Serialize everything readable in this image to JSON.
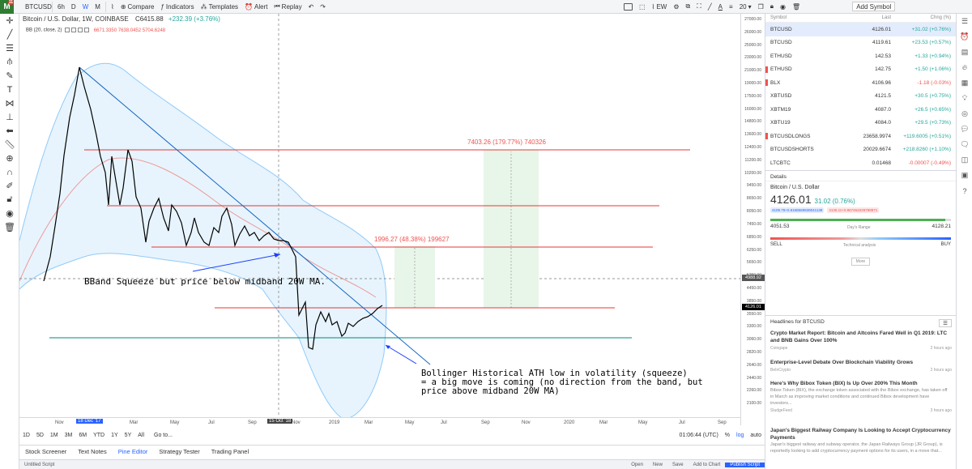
{
  "topbar": {
    "logo_badge": "11",
    "symbol": "BTCUSD",
    "intervals": [
      "6h",
      "D",
      "W",
      "M"
    ],
    "active_interval": "W",
    "compare": "Compare",
    "indicators": "Indicators",
    "templates": "Templates",
    "alert": "Alert",
    "replay": "Replay",
    "ew": "EW",
    "thickness": "20",
    "add_symbol": "Add Symbol"
  },
  "chart": {
    "title": "Bitcoin / U.S. Dollar, 1W, COINBASE",
    "price": "C6415.88",
    "change": "+232.39 (+3.76%)",
    "indicator": "BB (20, close, 2)",
    "bb_values": "6671.3350  7638.0452  5704.6248",
    "measure1": "1996.27 (48.38%) 199627",
    "measure2": "7403.26 (179.77%) 740326",
    "annotation1": "BBand Squeeze but price below midband 20W MA.",
    "annotation2_l1": "Bollinger Historical ATH low in volatility (squeeze)",
    "annotation2_l2": "= a big move is coming (no direction from the band, but",
    "annotation2_l3": "price above midband 20W MA)",
    "crosshair_price": "4988.92",
    "last_price_label": "4126.01"
  },
  "price_ticks": [
    "27000.00",
    "26000.00",
    "25000.00",
    "23000.00",
    "21000.00",
    "19000.00",
    "17500.00",
    "16000.00",
    "14800.00",
    "13600.00",
    "12400.00",
    "11200.00",
    "10200.00",
    "9450.00",
    "8650.00",
    "8050.00",
    "7450.00",
    "6850.00",
    "6250.00",
    "5650.00",
    "5250.00",
    "4450.00",
    "3850.00",
    "3550.00",
    "3300.00",
    "3060.00",
    "2820.00",
    "2640.00",
    "2440.00",
    "2260.00",
    "2100.00"
  ],
  "time_labels": [
    "Nov",
    "18 Dec '17",
    "Mar",
    "May",
    "Jul",
    "Sep",
    "15 Oct '18",
    "Nov",
    "2019",
    "Mar",
    "May",
    "Jul",
    "Sep",
    "Nov",
    "2020",
    "Mar",
    "May",
    "Jul",
    "Sep"
  ],
  "range_bar": {
    "ranges": [
      "1D",
      "5D",
      "1M",
      "3M",
      "6M",
      "YTD",
      "1Y",
      "5Y",
      "All"
    ],
    "goto": "Go to...",
    "time": "01:06:44 (UTC)",
    "pct": "%",
    "log": "log",
    "auto": "auto"
  },
  "bottom_tabs": [
    "Stock Screener",
    "Text Notes",
    "Pine Editor",
    "Strategy Tester",
    "Trading Panel"
  ],
  "active_tab": "Pine Editor",
  "footer": {
    "script": "Untitled Script",
    "open": "Open",
    "new": "New",
    "save": "Save",
    "add_to_chart": "Add to Chart",
    "publish": "Publish Script"
  },
  "watchlist": {
    "headers": [
      "Symbol",
      "Last",
      "Chng (%)"
    ],
    "rows": [
      {
        "symbol": "BTCUSD",
        "last": "4126.01",
        "chg": "+31.02 (+0.76%)",
        "dir": "up",
        "flag": false
      },
      {
        "symbol": "BTCUSD",
        "last": "4119.61",
        "chg": "+23.53 (+0.57%)",
        "dir": "up",
        "flag": false
      },
      {
        "symbol": "ETHUSD",
        "last": "142.53",
        "chg": "+1.33 (+0.94%)",
        "dir": "up",
        "flag": false
      },
      {
        "symbol": "ETHUSD",
        "last": "142.75",
        "chg": "+1.50 (+1.06%)",
        "dir": "up",
        "flag": true
      },
      {
        "symbol": "BLX",
        "last": "4106.96",
        "chg": "-1.18 (-0.03%)",
        "dir": "dn",
        "flag": true
      },
      {
        "symbol": "XBTUSD",
        "last": "4121.5",
        "chg": "+30.5 (+0.75%)",
        "dir": "up",
        "flag": false
      },
      {
        "symbol": "XBTM19",
        "last": "4087.0",
        "chg": "+26.5 (+0.65%)",
        "dir": "up",
        "flag": false
      },
      {
        "symbol": "XBTU19",
        "last": "4084.0",
        "chg": "+29.5 (+0.73%)",
        "dir": "up",
        "flag": false
      },
      {
        "symbol": "BTCUSDLONGS",
        "last": "23658.9974",
        "chg": "+119.6005 (+0.51%)",
        "dir": "up",
        "flag": true
      },
      {
        "symbol": "BTCUSDSHORTS",
        "last": "20029.6674",
        "chg": "+218.8260 (+1.10%)",
        "dir": "up",
        "flag": false
      },
      {
        "symbol": "LTCBTC",
        "last": "0.01468",
        "chg": "-0.00007 (-0.49%)",
        "dir": "dn",
        "flag": false
      }
    ]
  },
  "details": {
    "heading": "Details",
    "name": "Bitcoin / U.S. Dollar",
    "price": "4126.01",
    "change": "31.02 (0.76%)",
    "band1": "4109.79+0.8168669939041138",
    "band2": "4135.11+0.967464029788971",
    "low": "4051.53",
    "range_label": "Day's Range",
    "high": "4128.21",
    "range_fill": 0.97,
    "sell": "SELL",
    "tech": "Technical analysis",
    "buy": "BUY",
    "more": "More"
  },
  "news": {
    "heading": "Headlines for BTCUSD",
    "items": [
      {
        "title": "Crypto Market Report: Bitcoin and Altcoins Fared Well in Q1 2019: LTC and BNB Gains Over 100%",
        "summary": "",
        "source": "Coingape",
        "time": "2 hours ago"
      },
      {
        "title": "Enterprise-Level Debate Over Blockchain Viability Grows",
        "summary": "",
        "source": "BeInCrypto",
        "time": "2 hours ago"
      },
      {
        "title": "Here's Why Bibox Token (BIX) Is Up Over 200% This Month",
        "summary": "Bibox Token (BIX), the exchange token associated with the Bibox exchange, has taken off in March as improving market conditions and continued Bibox development have investors...",
        "source": "SludgeFeed",
        "time": "3 hours ago"
      },
      {
        "title": "Japan's Biggest Railway Company Is Looking to Accept Cryptocurrency Payments",
        "summary": "Japan's biggest railway and subway operator, the Japan Railways Group (JR Group), is reportedly looking to add cryptocurrency payment options for its users, in a move that...",
        "source": "",
        "time": ""
      }
    ]
  },
  "colors": {
    "accent": "#2962ff",
    "up": "#26a69a",
    "down": "#ef5350",
    "band_fill": "#e3f2fd",
    "hline": "#e53935",
    "green_line": "#00897b",
    "trend": "#1565c0"
  }
}
